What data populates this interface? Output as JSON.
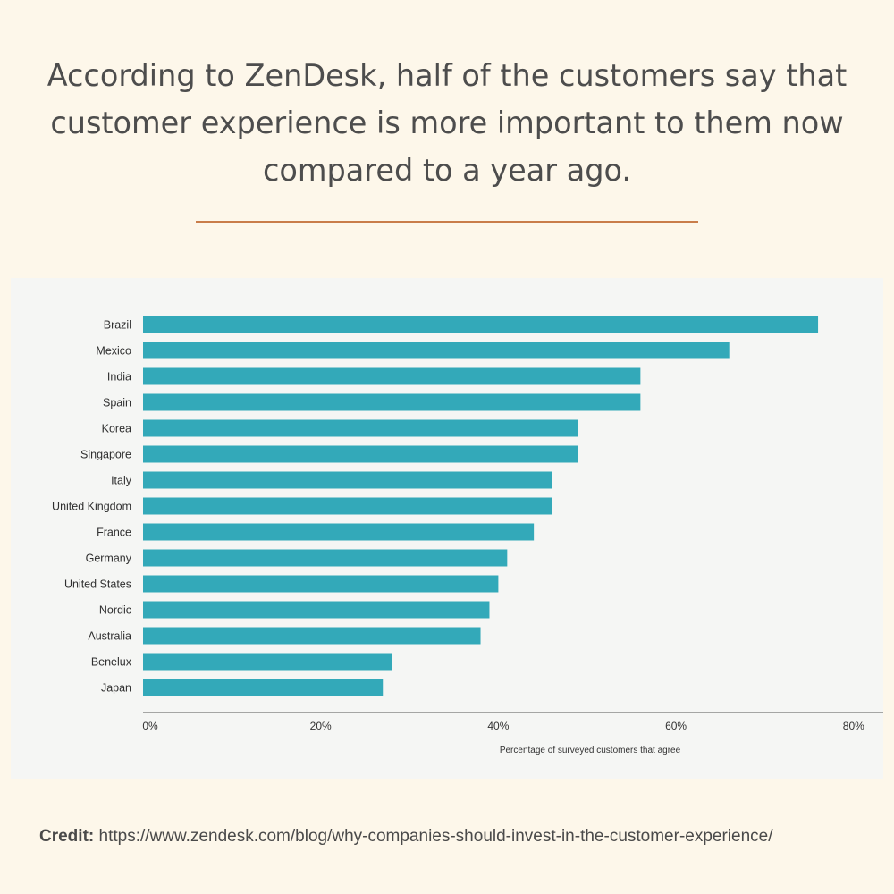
{
  "headline": "According to ZenDesk, half of the customers say that customer experience is more important to them now compared to a year ago.",
  "colors": {
    "background": "#fdf7ea",
    "bar": "#33a9b9",
    "divider": "#c97d4a",
    "panel": "#f5f6f4",
    "text": "#4d4d4d"
  },
  "credit": {
    "label": "Credit:",
    "url": "https://www.zendesk.com/blog/why-companies-should-invest-in-the-customer-experience/"
  },
  "chart_data": {
    "type": "bar",
    "orientation": "horizontal",
    "categories": [
      "Brazil",
      "Mexico",
      "India",
      "Spain",
      "Korea",
      "Singapore",
      "Italy",
      "United Kingdom",
      "France",
      "Germany",
      "United States",
      "Nordic",
      "Australia",
      "Benelux",
      "Japan"
    ],
    "values": [
      76,
      66,
      56,
      56,
      49,
      49,
      46,
      46,
      44,
      41,
      40,
      39,
      38,
      28,
      27
    ],
    "xlabel": "Percentage of surveyed customers that agree",
    "xlim": [
      0,
      80
    ],
    "xticks": [
      0,
      20,
      40,
      60,
      80
    ],
    "xtick_labels": [
      "0%",
      "20%",
      "40%",
      "60%",
      "80%"
    ],
    "grid": false,
    "legend": "none"
  }
}
